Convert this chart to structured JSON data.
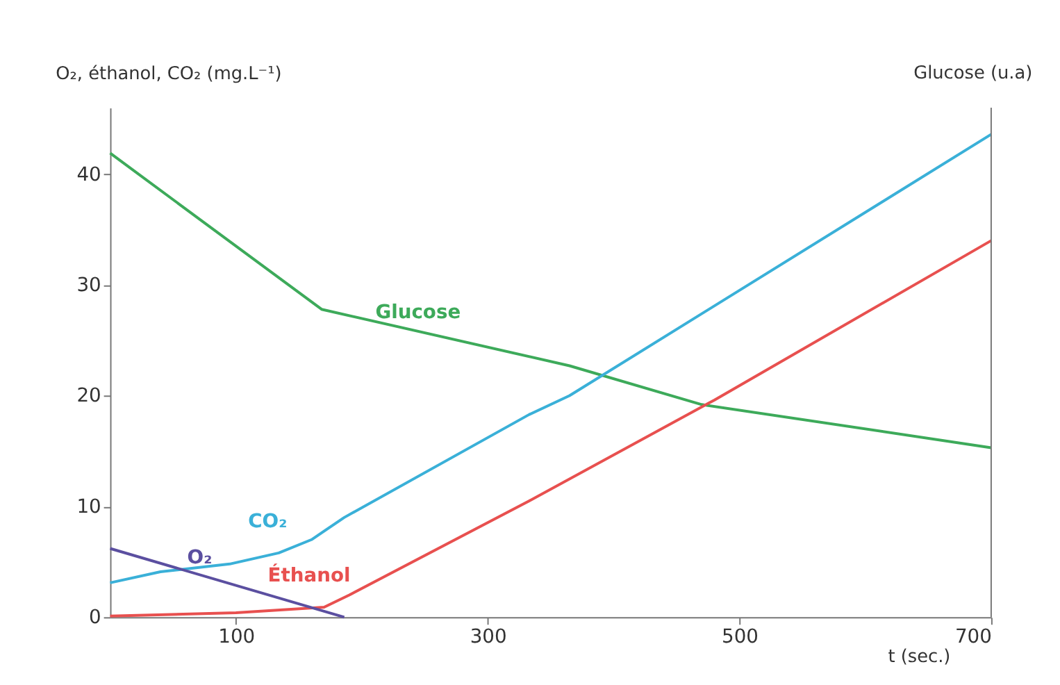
{
  "chart_data": {
    "type": "line",
    "xlabel": "t (sec.)",
    "ylabel": "O₂, éthanol, CO₂ (mg.L⁻¹)",
    "y2label": "Glucose (u.a)",
    "xlim": [
      0,
      700
    ],
    "xticks": [
      100,
      300,
      500,
      700
    ],
    "ylim": [
      0,
      46
    ],
    "yticks": [
      0,
      10,
      20,
      30,
      40
    ],
    "grid": false,
    "marker": "none",
    "line_style": "solid",
    "series": [
      {
        "name": "Glucose",
        "color": "#3daa5a",
        "x": [
          0,
          168,
          365,
          470,
          700
        ],
        "values": [
          41.9,
          27.8,
          22.7,
          19.2,
          15.3
        ]
      },
      {
        "name": "CO₂",
        "color": "#3ab0d8",
        "x": [
          0,
          40,
          95,
          134,
          160,
          186,
          333,
          365,
          700
        ],
        "values": [
          3.1,
          4.1,
          4.8,
          5.8,
          7.0,
          9.0,
          18.3,
          20.0,
          43.6
        ]
      },
      {
        "name": "Éthanol",
        "color": "#e8504f",
        "x": [
          0,
          100,
          170,
          190,
          333,
          480,
          700
        ],
        "values": [
          0.1,
          0.4,
          0.9,
          2.0,
          10.5,
          19.6,
          34.0
        ]
      },
      {
        "name": "O₂",
        "color": "#5b4fa0",
        "x": [
          0,
          186
        ],
        "values": [
          6.2,
          0.0
        ]
      }
    ]
  }
}
